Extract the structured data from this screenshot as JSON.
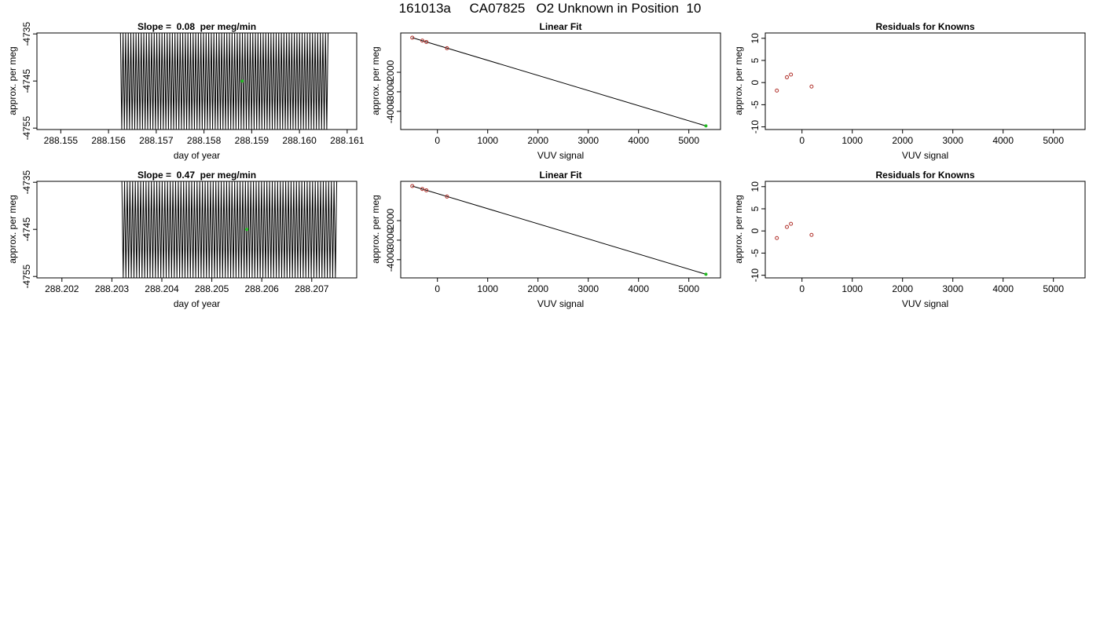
{
  "title": "161013a     CA07825   O2 Unknown in Position  10",
  "colors": {
    "known_point": "#b0302a",
    "unknown_point": "#22bb22",
    "line": "#000000"
  },
  "chart_data": [
    {
      "type": "line",
      "title": "Slope =  0.08  per meg/min",
      "xlabel": "day of year",
      "ylabel": "approx. per meg",
      "xlim": [
        288.1545,
        288.1612
      ],
      "ylim": [
        -4755.3,
        -4734.8
      ],
      "xticks": [
        "288.155",
        "288.156",
        "288.157",
        "288.158",
        "288.159",
        "288.160",
        "288.161"
      ],
      "yticks": [
        "-4735",
        "-4745",
        "-4755"
      ],
      "signal": {
        "x_start": 288.15625,
        "x_end": 288.1606,
        "y_low": -4755.3,
        "y_high": -4734.8,
        "cycles": 80
      },
      "marker": {
        "x": 288.1588,
        "y": -4745
      }
    },
    {
      "type": "scatter",
      "title": "Linear Fit",
      "xlabel": "VUV signal",
      "ylabel": "approx. per meg",
      "xlim": [
        -730,
        5630
      ],
      "ylim": [
        -4930,
        10
      ],
      "xticks": [
        "0",
        "1000",
        "2000",
        "3000",
        "4000",
        "5000"
      ],
      "yticks": [
        "-2000",
        "-3000",
        "-4000"
      ],
      "knowns": [
        {
          "x": -500,
          "y": -230
        },
        {
          "x": -300,
          "y": -380
        },
        {
          "x": -220,
          "y": -450
        },
        {
          "x": 190,
          "y": -770
        }
      ],
      "unknown": {
        "x": 5340,
        "y": -4745
      },
      "fit_line": [
        [
          -500,
          -230
        ],
        [
          5340,
          -4745
        ]
      ]
    },
    {
      "type": "scatter",
      "title": "Residuals for Knowns",
      "xlabel": "VUV signal",
      "ylabel": "approx. per meg",
      "xlim": [
        -730,
        5630
      ],
      "ylim": [
        -10.6,
        11.2
      ],
      "xticks": [
        "0",
        "1000",
        "2000",
        "3000",
        "4000",
        "5000"
      ],
      "yticks": [
        "10",
        "5",
        "0",
        "-5",
        "-10"
      ],
      "knowns": [
        {
          "x": -500,
          "y": -1.8
        },
        {
          "x": -300,
          "y": 1.2
        },
        {
          "x": -220,
          "y": 1.8
        },
        {
          "x": 190,
          "y": -0.9
        }
      ]
    },
    {
      "type": "line",
      "title": "Slope =  0.47  per meg/min",
      "xlabel": "day of year",
      "ylabel": "approx. per meg",
      "xlim": [
        288.2015,
        288.2079
      ],
      "ylim": [
        -4755.3,
        -4734.8
      ],
      "xticks": [
        "288.202",
        "288.203",
        "288.204",
        "288.205",
        "288.206",
        "288.207"
      ],
      "yticks": [
        "-4735",
        "-4745",
        "-4755"
      ],
      "signal": {
        "x_start": 288.2032,
        "x_end": 288.2075,
        "y_low": -4755.3,
        "y_high": -4734.8,
        "cycles": 80
      },
      "marker": {
        "x": 288.2057,
        "y": -4745
      }
    },
    {
      "type": "scatter",
      "title": "Linear Fit",
      "xlabel": "VUV signal",
      "ylabel": "approx. per meg",
      "xlim": [
        -730,
        5630
      ],
      "ylim": [
        -4930,
        10
      ],
      "xticks": [
        "0",
        "1000",
        "2000",
        "3000",
        "4000",
        "5000"
      ],
      "yticks": [
        "-2000",
        "-3000",
        "-4000"
      ],
      "knowns": [
        {
          "x": -500,
          "y": -230
        },
        {
          "x": -300,
          "y": -380
        },
        {
          "x": -220,
          "y": -450
        },
        {
          "x": 190,
          "y": -770
        }
      ],
      "unknown": {
        "x": 5340,
        "y": -4745
      },
      "fit_line": [
        [
          -500,
          -230
        ],
        [
          5340,
          -4745
        ]
      ]
    },
    {
      "type": "scatter",
      "title": "Residuals for Knowns",
      "xlabel": "VUV signal",
      "ylabel": "approx. per meg",
      "xlim": [
        -730,
        5630
      ],
      "ylim": [
        -10.6,
        11.2
      ],
      "xticks": [
        "0",
        "1000",
        "2000",
        "3000",
        "4000",
        "5000"
      ],
      "yticks": [
        "10",
        "5",
        "0",
        "-5",
        "-10"
      ],
      "knowns": [
        {
          "x": -500,
          "y": -1.6
        },
        {
          "x": -300,
          "y": 0.9
        },
        {
          "x": -220,
          "y": 1.6
        },
        {
          "x": 190,
          "y": -0.9
        }
      ]
    }
  ]
}
